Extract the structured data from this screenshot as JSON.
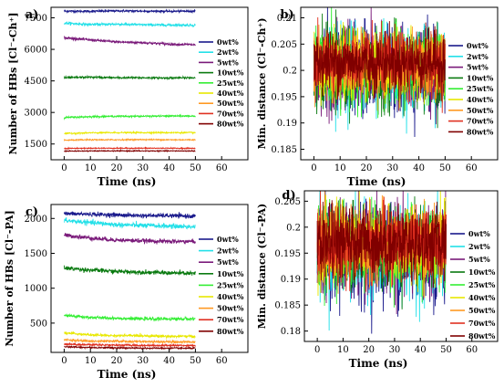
{
  "legend_labels": [
    "0wt%",
    "2wt%",
    "5wt%",
    "10wt%",
    "25wt%",
    "40wt%",
    "50wt%",
    "70wt%",
    "80wt%"
  ],
  "series_colors": [
    "#1a1a8c",
    "#22e0e8",
    "#7a1a7a",
    "#0a7a10",
    "#33ee33",
    "#e8e800",
    "#ff9922",
    "#e03020",
    "#800000"
  ],
  "chart_data": [
    {
      "panel": "a)",
      "type": "line",
      "xlabel": "Time (ns)",
      "ylabel": "Number of HBs [Cl⁻-Ch⁺]",
      "xlim": [
        -5,
        70
      ],
      "ylim": [
        750,
        8000
      ],
      "xticks": [
        0,
        10,
        20,
        30,
        40,
        50,
        60
      ],
      "yticks": [
        1500,
        3000,
        4500,
        6000,
        7500
      ],
      "legend_position": "right",
      "x": [
        0,
        10,
        20,
        30,
        40,
        50
      ],
      "series": [
        {
          "name": "0wt%",
          "values": [
            7820,
            7810,
            7830,
            7820,
            7810,
            7820
          ],
          "noise": 45
        },
        {
          "name": "2wt%",
          "values": [
            7250,
            7180,
            7200,
            7170,
            7160,
            7150
          ],
          "noise": 55
        },
        {
          "name": "5wt%",
          "values": [
            6550,
            6450,
            6350,
            6320,
            6250,
            6220
          ],
          "noise": 55
        },
        {
          "name": "10wt%",
          "values": [
            4650,
            4680,
            4650,
            4650,
            4640,
            4650
          ],
          "noise": 45
        },
        {
          "name": "25wt%",
          "values": [
            2760,
            2800,
            2820,
            2820,
            2830,
            2830
          ],
          "noise": 35
        },
        {
          "name": "40wt%",
          "values": [
            2000,
            2030,
            2040,
            2040,
            2040,
            2040
          ],
          "noise": 30
        },
        {
          "name": "50wt%",
          "values": [
            1680,
            1700,
            1700,
            1710,
            1700,
            1700
          ],
          "noise": 25
        },
        {
          "name": "70wt%",
          "values": [
            1290,
            1300,
            1300,
            1300,
            1300,
            1290
          ],
          "noise": 22
        },
        {
          "name": "80wt%",
          "values": [
            1160,
            1170,
            1170,
            1170,
            1170,
            1170
          ],
          "noise": 20
        }
      ]
    },
    {
      "panel": "b)",
      "type": "line",
      "xlabel": "Time (ns)",
      "ylabel": "Min. distance (Cl⁻-Ch⁺)",
      "xlim": [
        -5,
        70
      ],
      "ylim": [
        0.183,
        0.212
      ],
      "xticks": [
        0,
        10,
        20,
        30,
        40,
        50,
        60
      ],
      "yticks": [
        0.185,
        0.19,
        0.195,
        0.2,
        0.205,
        0.21
      ],
      "legend_position": "right",
      "x": [
        0,
        50
      ],
      "series": [
        {
          "name": "0wt%",
          "values": [
            0.2,
            0.2
          ],
          "noise": 0.0075
        },
        {
          "name": "2wt%",
          "values": [
            0.2,
            0.2
          ],
          "noise": 0.007
        },
        {
          "name": "5wt%",
          "values": [
            0.2,
            0.2
          ],
          "noise": 0.0068
        },
        {
          "name": "10wt%",
          "values": [
            0.2,
            0.2
          ],
          "noise": 0.0066
        },
        {
          "name": "25wt%",
          "values": [
            0.2005,
            0.2005
          ],
          "noise": 0.0062
        },
        {
          "name": "40wt%",
          "values": [
            0.201,
            0.201
          ],
          "noise": 0.0058
        },
        {
          "name": "50wt%",
          "values": [
            0.2012,
            0.2012
          ],
          "noise": 0.0055
        },
        {
          "name": "70wt%",
          "values": [
            0.2014,
            0.2014
          ],
          "noise": 0.0052
        },
        {
          "name": "80wt%",
          "values": [
            0.2016,
            0.2016
          ],
          "noise": 0.005
        }
      ]
    },
    {
      "panel": "c)",
      "type": "line",
      "xlabel": "Time (ns)",
      "ylabel": "Number of HBs [Cl⁻-PA]",
      "xlim": [
        -5,
        70
      ],
      "ylim": [
        80,
        2200
      ],
      "xticks": [
        0,
        10,
        20,
        30,
        40,
        50,
        60
      ],
      "yticks": [
        500,
        1000,
        1500,
        2000
      ],
      "legend_position": "right",
      "x": [
        0,
        10,
        20,
        30,
        40,
        50
      ],
      "series": [
        {
          "name": "0wt%",
          "values": [
            2070,
            2060,
            2050,
            2040,
            2040,
            2030
          ],
          "noise": 28
        },
        {
          "name": "2wt%",
          "values": [
            1970,
            1940,
            1910,
            1900,
            1890,
            1880
          ],
          "noise": 32
        },
        {
          "name": "5wt%",
          "values": [
            1760,
            1720,
            1690,
            1680,
            1670,
            1670
          ],
          "noise": 28
        },
        {
          "name": "10wt%",
          "values": [
            1290,
            1260,
            1240,
            1230,
            1220,
            1210
          ],
          "noise": 28
        },
        {
          "name": "25wt%",
          "values": [
            610,
            580,
            570,
            560,
            560,
            560
          ],
          "noise": 20
        },
        {
          "name": "40wt%",
          "values": [
            360,
            330,
            320,
            320,
            310,
            310
          ],
          "noise": 16
        },
        {
          "name": "50wt%",
          "values": [
            260,
            240,
            240,
            235,
            230,
            230
          ],
          "noise": 14
        },
        {
          "name": "70wt%",
          "values": [
            200,
            190,
            185,
            180,
            180,
            180
          ],
          "noise": 12
        },
        {
          "name": "80wt%",
          "values": [
            160,
            150,
            145,
            140,
            140,
            140
          ],
          "noise": 10
        }
      ]
    },
    {
      "panel": "d)",
      "type": "line",
      "xlabel": "Time (ns)",
      "ylabel": "Min. distance (Cl⁻-PA)",
      "xlim": [
        -5,
        70
      ],
      "ylim": [
        0.178,
        0.207
      ],
      "xticks": [
        0,
        10,
        20,
        30,
        40,
        50,
        60
      ],
      "yticks": [
        0.18,
        0.185,
        0.19,
        0.195,
        0.2,
        0.205
      ],
      "legend_position": "right",
      "x": [
        0,
        50
      ],
      "series": [
        {
          "name": "0wt%",
          "values": [
            0.195,
            0.195
          ],
          "noise": 0.0085
        },
        {
          "name": "2wt%",
          "values": [
            0.195,
            0.195
          ],
          "noise": 0.008
        },
        {
          "name": "5wt%",
          "values": [
            0.1955,
            0.1955
          ],
          "noise": 0.0075
        },
        {
          "name": "10wt%",
          "values": [
            0.196,
            0.196
          ],
          "noise": 0.007
        },
        {
          "name": "25wt%",
          "values": [
            0.1962,
            0.1962
          ],
          "noise": 0.0068
        },
        {
          "name": "40wt%",
          "values": [
            0.1965,
            0.1965
          ],
          "noise": 0.0065
        },
        {
          "name": "50wt%",
          "values": [
            0.1967,
            0.1967
          ],
          "noise": 0.0062
        },
        {
          "name": "70wt%",
          "values": [
            0.1968,
            0.1968
          ],
          "noise": 0.006
        },
        {
          "name": "80wt%",
          "values": [
            0.197,
            0.197
          ],
          "noise": 0.0058
        }
      ]
    }
  ]
}
